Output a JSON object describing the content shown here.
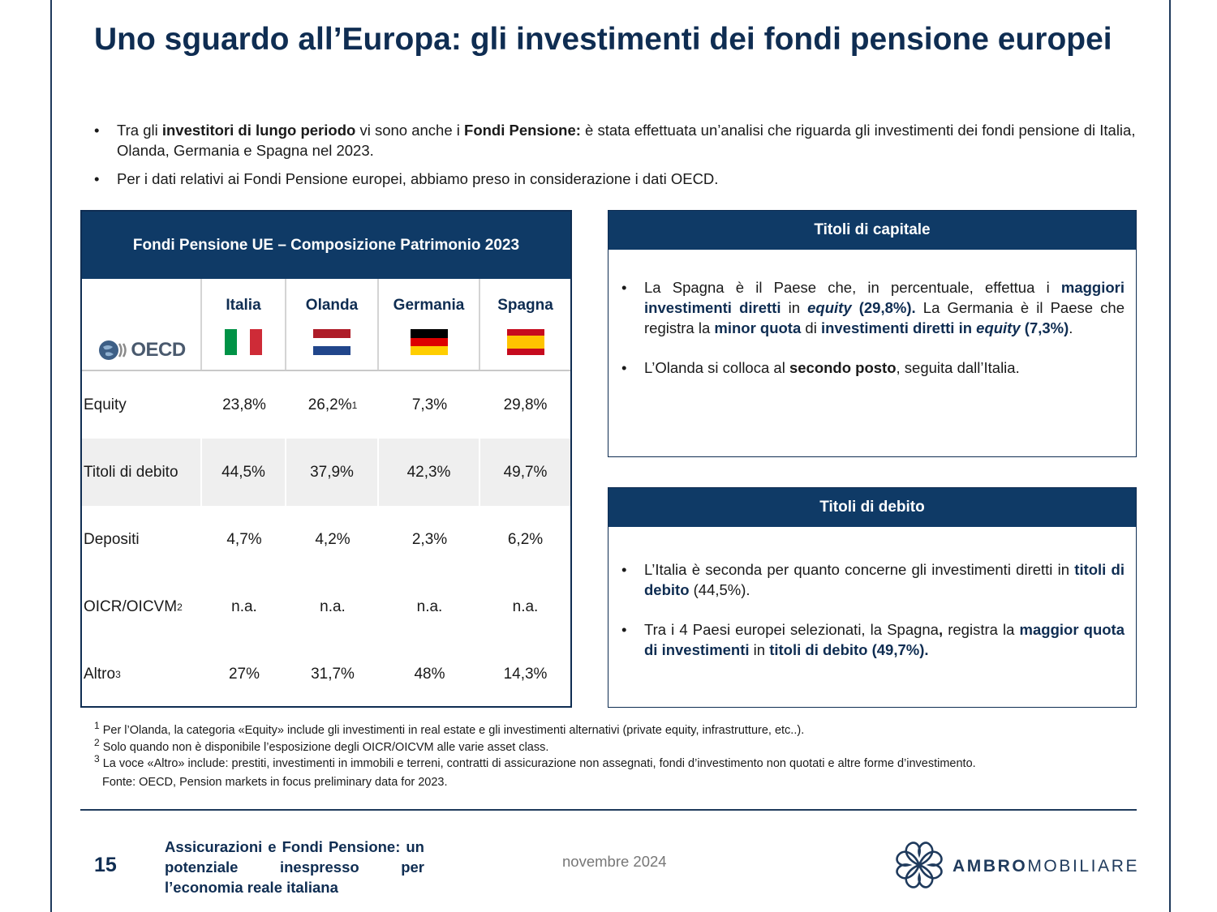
{
  "title": "Uno sguardo all’Europa: gli investimenti dei fondi pensione europei",
  "intro": {
    "b1": {
      "t1": "Tra gli ",
      "t2": "investitori di lungo periodo",
      "t3": " vi sono anche i ",
      "t4": "Fondi Pensione:",
      "t5": " è stata effettuata un’analisi che riguarda gli investimenti dei fondi pensione di Italia, Olanda, Germania e Spagna nel 2023."
    },
    "b2": "Per i dati relativi ai Fondi Pensione europei, abbiamo preso in considerazione i dati OECD."
  },
  "table": {
    "title": "Fondi Pensione UE – Composizione Patrimonio 2023",
    "logo_text": "OECD",
    "columns": [
      "Italia",
      "Olanda",
      "Germania",
      "Spagna"
    ],
    "flag_colors": {
      "italia": [
        "#009246",
        "#ffffff",
        "#ce2b37"
      ],
      "olanda": [
        "#ae1c28",
        "#ffffff",
        "#21468b"
      ],
      "germania": [
        "#000000",
        "#dd0000",
        "#ffce00"
      ],
      "spagna": [
        "#c60b1e",
        "#ffc400",
        "#c60b1e"
      ]
    },
    "rows": [
      {
        "label": "Equity",
        "label_sup": "",
        "values": [
          "23,8%",
          "26,2%",
          "7,3%",
          "29,8%"
        ],
        "value_sup": "1"
      },
      {
        "label": "Titoli di debito",
        "label_sup": "",
        "values": [
          "44,5%",
          "37,9%",
          "42,3%",
          "49,7%"
        ]
      },
      {
        "label": "Depositi",
        "label_sup": "",
        "values": [
          "4,7%",
          "4,2%",
          "2,3%",
          "6,2%"
        ]
      },
      {
        "label": "OICR/OICVM",
        "label_sup": "2",
        "values": [
          "n.a.",
          "n.a.",
          "n.a.",
          "n.a."
        ]
      },
      {
        "label": "Altro",
        "label_sup": "3",
        "values": [
          "27%",
          "31,7%",
          "48%",
          "14,3%"
        ]
      }
    ]
  },
  "box1": {
    "title": "Titoli di capitale",
    "p1": {
      "a": "La Spagna è il Paese che, in percentuale, effettua i ",
      "b": "maggiori investimenti diretti",
      "c": " in ",
      "d": "equity",
      "e": " (29,8%).",
      "f": " La Germania è il Paese che registra la ",
      "g": "minor quota",
      "h": " di ",
      "i": "investimenti diretti in ",
      "j": "equity",
      "k": " (7,3%)",
      "l": "."
    },
    "p2": {
      "a": "L’Olanda si colloca al ",
      "b": "secondo posto",
      "c": ", seguita dall’Italia."
    }
  },
  "box2": {
    "title": "Titoli di debito",
    "p1": {
      "a": "L’Italia è seconda per quanto concerne gli investimenti diretti in ",
      "b": "titoli di debito",
      "c": " (44,5%)."
    },
    "p2": {
      "a": "Tra i 4 Paesi europei selezionati, la Spagna",
      "b": ",",
      "c": " registra la ",
      "d": "maggior quota di investimenti",
      "e": " in ",
      "f": "titoli di debito (49,7%)."
    }
  },
  "footnotes": {
    "n1": {
      "num": "1",
      "text": " Per l’Olanda, la categoria «Equity» include gli investimenti in real estate e gli investimenti alternativi (private equity, infrastrutture, etc..)."
    },
    "n2": {
      "num": "2",
      "text": " Solo quando non è disponibile l’esposizione degli OICR/OICVM alle varie asset class."
    },
    "n3": {
      "num": "3",
      "text": " La voce «Altro» include: prestiti, investimenti in immobili e terreni, contratti di assicurazione non assegnati, fondi d’investimento non quotati e altre forme d’investimento."
    },
    "source": "Fonte: OECD, Pension markets in focus preliminary data for 2023."
  },
  "footer": {
    "page": "15",
    "title": "Assicurazioni e Fondi Pensione: un potenziale inespresso per l’economia reale italiana",
    "date": "novembre 2024",
    "logo_bold": "AMBRO",
    "logo_light": "MOBILIARE"
  }
}
